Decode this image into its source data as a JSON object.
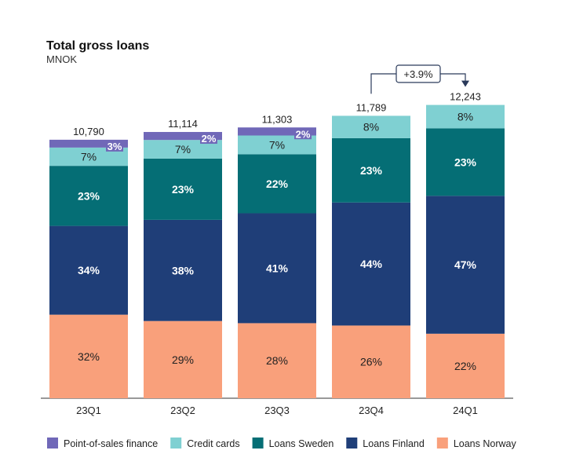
{
  "chart_data": {
    "type": "bar",
    "stacked": true,
    "title": "Total gross loans",
    "subtitle": "MNOK",
    "categories": [
      "23Q1",
      "23Q2",
      "23Q3",
      "23Q4",
      "24Q1"
    ],
    "totals": [
      "10,790",
      "11,114",
      "11,303",
      "11,789",
      "12,243"
    ],
    "total_values": [
      10790,
      11114,
      11303,
      11789,
      12243
    ],
    "series": [
      {
        "name": "Loans Norway",
        "color": "#F9A07B",
        "label_color": "#222222",
        "labels": [
          "32%",
          "29%",
          "28%",
          "26%",
          "22%"
        ]
      },
      {
        "name": "Loans Finland",
        "color": "#1F3E78",
        "label_color": "#ffffff",
        "labels": [
          "34%",
          "38%",
          "41%",
          "44%",
          "47%"
        ]
      },
      {
        "name": "Loans Sweden",
        "color": "#056E75",
        "label_color": "#ffffff",
        "labels": [
          "23%",
          "23%",
          "22%",
          "23%",
          "23%"
        ]
      },
      {
        "name": "Credit cards",
        "color": "#7FD0D2",
        "label_color": "#222222",
        "labels": [
          "7%",
          "7%",
          "7%",
          "8%",
          "8%"
        ]
      },
      {
        "name": "Point-of-sales finance",
        "color": "#7068B8",
        "label_color": "#ffffff",
        "labels": [
          "3%",
          "2%",
          "2%",
          "",
          ""
        ]
      }
    ],
    "legend_order": [
      "Point-of-sales finance",
      "Credit cards",
      "Loans Sweden",
      "Loans Finland",
      "Loans Norway"
    ],
    "legend_position": "bottom",
    "growth_annotation": {
      "text": "+3.9%",
      "from": "23Q4",
      "to": "24Q1"
    },
    "ylim": [
      0,
      12500
    ],
    "grid": false
  }
}
